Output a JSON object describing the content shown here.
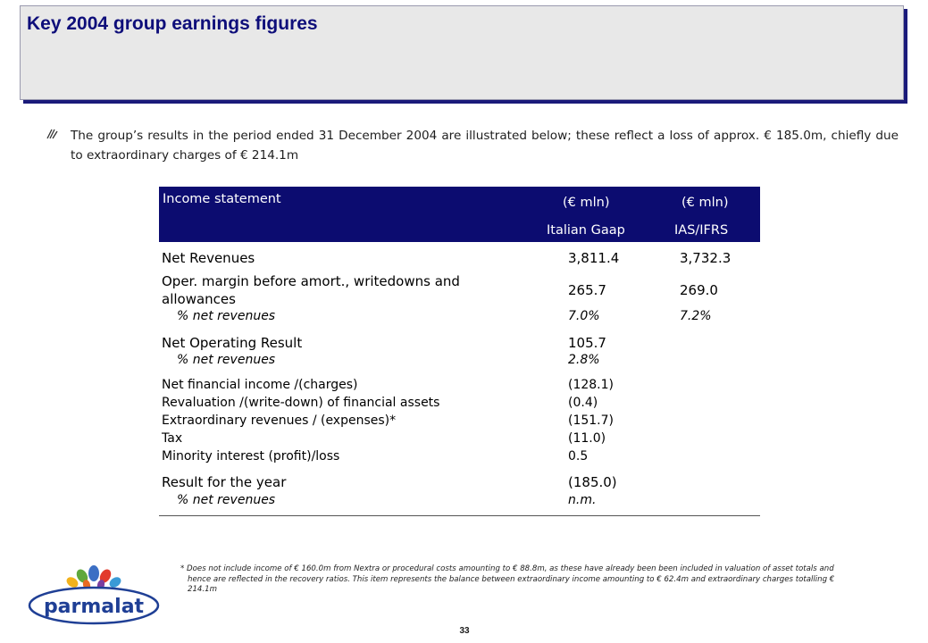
{
  "page": {
    "title": "Key 2004 group earnings figures",
    "intro": "The group’s results in the period ended 31 December 2004 are illustrated below; these reflect a loss of approx. € 185.0m, chiefly due to extraordinary charges of € 214.1m",
    "page_number": "33",
    "logo_text": "parmalat"
  },
  "table": {
    "title": "Income statement",
    "col1_unit": "(€ mln)",
    "col2_unit": "(€ mln)",
    "col1_gaap": "Italian Gaap",
    "col2_gaap": "IAS/IFRS",
    "rows": [
      {
        "label": "Net Revenues",
        "v1": "3,811.4",
        "v2": "3,732.3"
      },
      {
        "label1": "Oper. margin before amort., writedowns and",
        "label2": "allowances",
        "v1": "265.7",
        "v2": "269.0"
      },
      {
        "label": "% net revenues",
        "v1": "7.0%",
        "v2": "7.2%"
      },
      {
        "label": "Net Operating Result",
        "v1": "105.7"
      },
      {
        "label": "% net revenues",
        "v1": "2.8%"
      },
      {
        "label": "Net financial income /(charges)",
        "v1": "(128.1)"
      },
      {
        "label": "Revaluation /(write-down) of financial assets",
        "v1": "(0.4)"
      },
      {
        "label": "Extraordinary revenues / (expenses)*",
        "v1": "(151.7)"
      },
      {
        "label": "Tax",
        "v1": "(11.0)"
      },
      {
        "label": "Minority interest (profit)/loss",
        "v1": "0.5"
      },
      {
        "label": "Result for the year",
        "v1": "(185.0)"
      },
      {
        "label": "% net revenues",
        "v1": "n.m."
      }
    ]
  },
  "footnote": {
    "line1": "* Does not include income of € 160.0m from Nextra or procedural costs amounting to € 88.8m, as these have already been been included in valuation of asset totals and",
    "line2": "hence are reflected in the recovery ratios. This item represents the balance between extraordinary income amounting to € 62.4m and extraordinary charges totalling €",
    "line3": "214.1m"
  },
  "colors": {
    "title_text": "#0e0e7a",
    "header_bg": "#0c0c70",
    "logo_blue": "#1f3f95"
  }
}
